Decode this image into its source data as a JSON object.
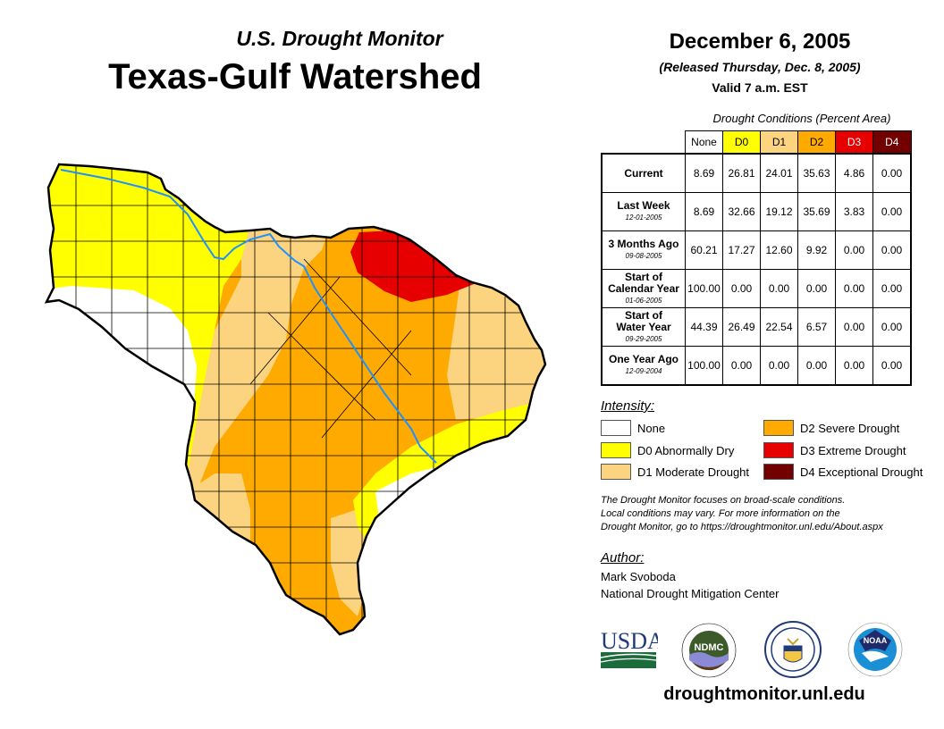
{
  "header": {
    "subtitle": "U.S. Drought Monitor",
    "title": "Texas-Gulf Watershed",
    "date": "December 6, 2005",
    "released": "(Released Thursday, Dec. 8, 2005)",
    "valid": "Valid 7 a.m. EST"
  },
  "table": {
    "caption": "Drought Conditions (Percent Area)",
    "columns": [
      "None",
      "D0",
      "D1",
      "D2",
      "D3",
      "D4"
    ],
    "column_colors": [
      "#ffffff",
      "#ffff00",
      "#fcd37f",
      "#ffaa00",
      "#e60000",
      "#730000"
    ],
    "rows": [
      {
        "label": "Current",
        "label2": "",
        "date": "",
        "values": [
          "8.69",
          "26.81",
          "24.01",
          "35.63",
          "4.86",
          "0.00"
        ]
      },
      {
        "label": "Last Week",
        "label2": "",
        "date": "12-01-2005",
        "values": [
          "8.69",
          "32.66",
          "19.12",
          "35.69",
          "3.83",
          "0.00"
        ]
      },
      {
        "label": "3 Months Ago",
        "label2": "",
        "date": "09-08-2005",
        "values": [
          "60.21",
          "17.27",
          "12.60",
          "9.92",
          "0.00",
          "0.00"
        ]
      },
      {
        "label": "Start of",
        "label2": "Calendar Year",
        "date": "01-06-2005",
        "values": [
          "100.00",
          "0.00",
          "0.00",
          "0.00",
          "0.00",
          "0.00"
        ]
      },
      {
        "label": "Start of",
        "label2": "Water Year",
        "date": "09-29-2005",
        "values": [
          "44.39",
          "26.49",
          "22.54",
          "6.57",
          "0.00",
          "0.00"
        ]
      },
      {
        "label": "One Year Ago",
        "label2": "",
        "date": "12-09-2004",
        "values": [
          "100.00",
          "0.00",
          "0.00",
          "0.00",
          "0.00",
          "0.00"
        ]
      }
    ]
  },
  "legend": {
    "heading": "Intensity:",
    "items": [
      {
        "label": "None",
        "color": "#ffffff"
      },
      {
        "label": "D0 Abnormally Dry",
        "color": "#ffff00"
      },
      {
        "label": "D1 Moderate Drought",
        "color": "#fcd37f"
      },
      {
        "label": "D2 Severe Drought",
        "color": "#ffaa00"
      },
      {
        "label": "D3 Extreme Drought",
        "color": "#e60000"
      },
      {
        "label": "D4 Exceptional Drought",
        "color": "#730000"
      }
    ]
  },
  "note": {
    "line1": "The Drought Monitor focuses on broad-scale conditions.",
    "line2": "Local conditions may vary. For more information on the",
    "line3": "Drought Monitor, go to https://droughtmonitor.unl.edu/About.aspx"
  },
  "author": {
    "heading": "Author:",
    "name": "Mark Svoboda",
    "org": "National Drought Mitigation Center"
  },
  "logos": {
    "usda": "USDA",
    "ndmc": "NDMC",
    "doc": "Department of Commerce",
    "noaa": "NOAA"
  },
  "footer": {
    "url": "droughtmonitor.unl.edu"
  },
  "map": {
    "region": "Texas-Gulf Watershed",
    "river_color": "#1e90ff",
    "categories_present": [
      "None",
      "D0",
      "D1",
      "D2",
      "D3"
    ]
  }
}
